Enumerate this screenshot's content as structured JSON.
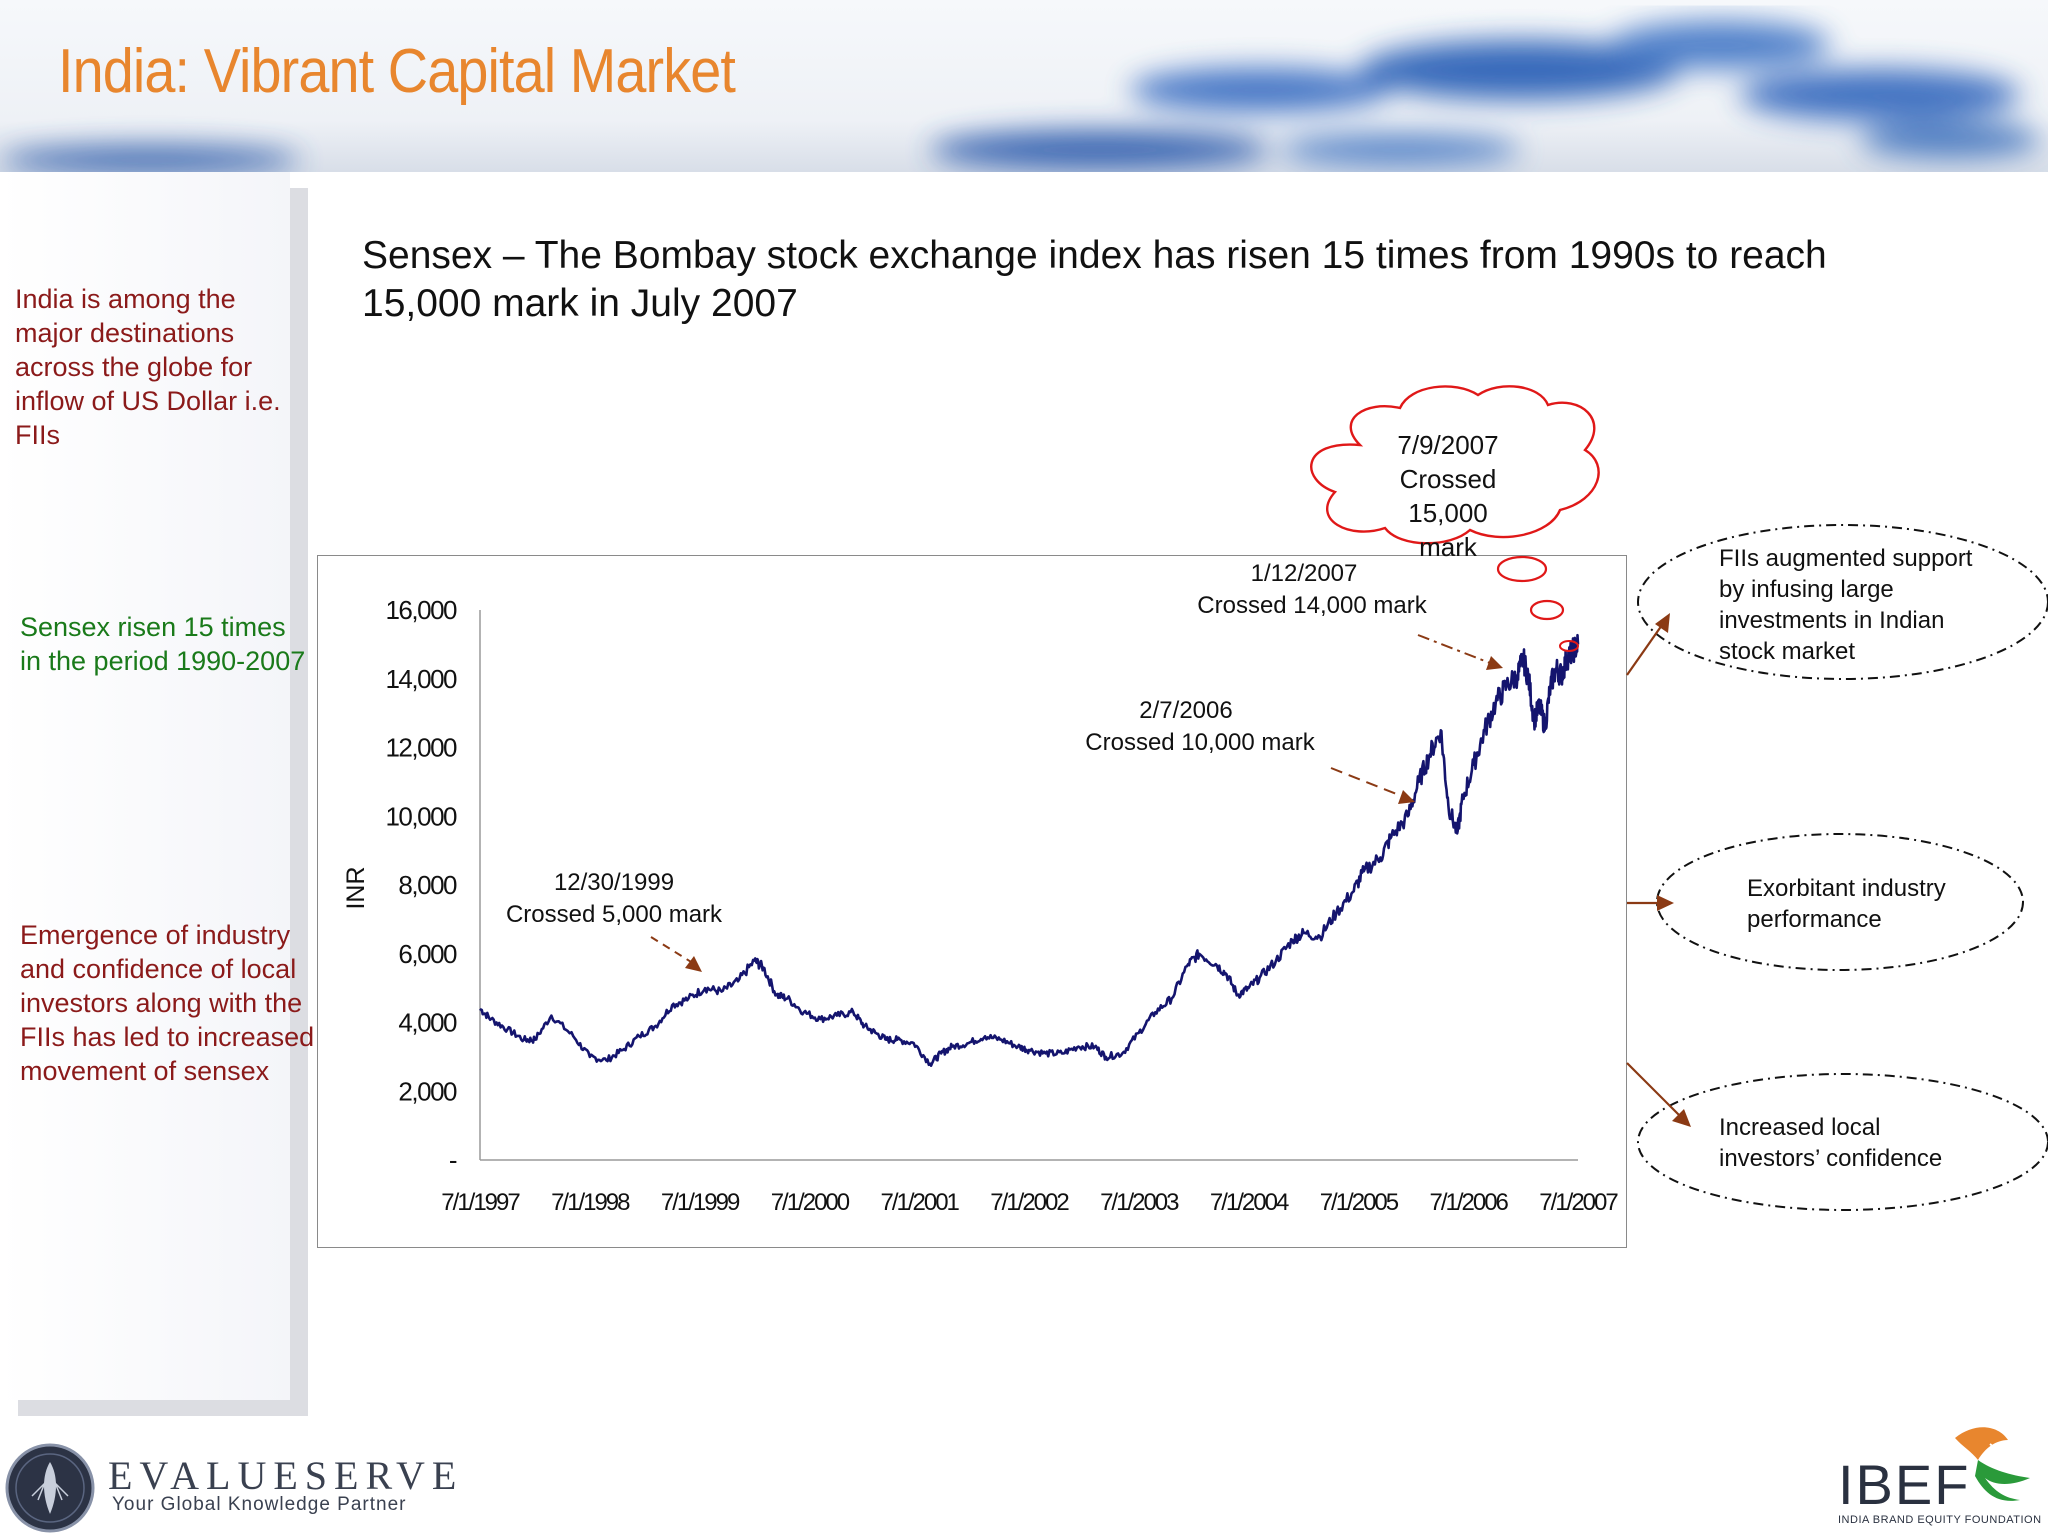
{
  "page": {
    "title": "India: Vibrant Capital Market",
    "headline": "Sensex – The Bombay stock exchange index has risen 15 times from 1990s to reach 15,000 mark in July 2007"
  },
  "sidebar": {
    "item1": "India is among the major destinations across the globe for inflow of US Dollar i.e. FIIs",
    "item2": "Sensex risen 15 times in the period 1990-2007",
    "item3": "Emergence of industry and confidence of local investors along with the FIIs has led to increased movement of sensex"
  },
  "drivers": {
    "fii": "FIIs augmented support by infusing large investments  in Indian stock market",
    "industry": "Exorbitant industry performance",
    "local": "Increased local investors’ confidence"
  },
  "logos": {
    "evalueserve_name": "EVALUESERVE",
    "evalueserve_tagline": "Your Global Knowledge Partner",
    "ibef_name": "IBEF",
    "ibef_full": "INDIA BRAND EQUITY FOUNDATION"
  },
  "colors": {
    "title": "#e8862e",
    "line": "#14146e",
    "arrow": "#8b3a14",
    "cloud": "#e01818",
    "side_red": "#8b1a1a",
    "side_green": "#1a7a1a"
  },
  "chart_data": {
    "type": "line",
    "title": "",
    "xlabel": "",
    "ylabel": "INR",
    "ylim": [
      0,
      16000
    ],
    "y_ticks": [
      0,
      2000,
      4000,
      6000,
      8000,
      10000,
      12000,
      14000,
      16000
    ],
    "y_tick_labels": [
      "-",
      "2,000",
      "4,000",
      "6,000",
      "8,000",
      "10,000",
      "12,000",
      "14,000",
      "16,000"
    ],
    "x_tick_labels": [
      "7/1/1997",
      "7/1/1998",
      "7/1/1999",
      "7/1/2000",
      "7/1/2001",
      "7/1/2002",
      "7/1/2003",
      "7/1/2004",
      "7/1/2005",
      "7/1/2006",
      "7/1/2007"
    ],
    "xlim": [
      1997.5,
      2007.5
    ],
    "series": [
      {
        "name": "Sensex",
        "x": [
          1997.5,
          1997.6,
          1997.75,
          1997.9,
          1998.0,
          1998.15,
          1998.35,
          1998.5,
          1998.65,
          1998.8,
          1998.95,
          1999.1,
          1999.25,
          1999.4,
          1999.55,
          1999.7,
          1999.85,
          2000.0,
          2000.08,
          2000.2,
          2000.3,
          2000.45,
          2000.6,
          2000.75,
          2000.9,
          2001.0,
          2001.1,
          2001.2,
          2001.3,
          2001.45,
          2001.6,
          2001.7,
          2001.8,
          2001.95,
          2002.1,
          2002.25,
          2002.4,
          2002.5,
          2002.65,
          2002.8,
          2002.95,
          2003.1,
          2003.2,
          2003.35,
          2003.5,
          2003.65,
          2003.8,
          2003.95,
          2004.05,
          2004.2,
          2004.3,
          2004.4,
          2004.5,
          2004.6,
          2004.75,
          2004.9,
          2005.0,
          2005.15,
          2005.3,
          2005.45,
          2005.55,
          2005.7,
          2005.8,
          2005.95,
          2006.05,
          2006.15,
          2006.25,
          2006.32,
          2006.4,
          2006.45,
          2006.55,
          2006.65,
          2006.75,
          2006.85,
          2006.95,
          2007.0,
          2007.05,
          2007.1,
          2007.15,
          2007.2,
          2007.25,
          2007.3,
          2007.35,
          2007.4,
          2007.45,
          2007.5
        ],
        "y": [
          4400,
          4100,
          3800,
          3500,
          3500,
          4200,
          3600,
          3000,
          2900,
          3200,
          3600,
          3900,
          4500,
          4700,
          5000,
          4900,
          5200,
          5800,
          5600,
          4800,
          4700,
          4300,
          4100,
          4200,
          4300,
          3900,
          3700,
          3500,
          3500,
          3400,
          2800,
          3100,
          3300,
          3400,
          3600,
          3500,
          3300,
          3200,
          3100,
          3100,
          3300,
          3300,
          3000,
          3100,
          3700,
          4300,
          4700,
          5700,
          6000,
          5700,
          5400,
          4800,
          5000,
          5300,
          5800,
          6400,
          6600,
          6500,
          7200,
          7800,
          8400,
          8800,
          9400,
          10000,
          11000,
          11800,
          12500,
          10300,
          9500,
          10500,
          11500,
          12500,
          13300,
          13800,
          14100,
          14600,
          14000,
          12800,
          13200,
          12600,
          13800,
          14300,
          14100,
          14600,
          14800,
          15000
        ]
      }
    ],
    "annotations": [
      {
        "date": "12/30/1999",
        "text": "Crossed 5,000 mark"
      },
      {
        "date": "2/7/2006",
        "text": "Crossed 10,000 mark"
      },
      {
        "date": "1/12/2007",
        "text": "Crossed 14,000 mark"
      },
      {
        "date": "7/9/2007",
        "line1": "Crossed",
        "line2": "15,000",
        "line3": "mark"
      }
    ]
  }
}
